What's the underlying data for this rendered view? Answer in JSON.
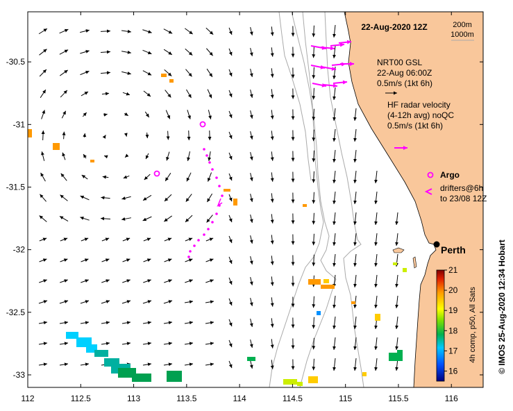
{
  "map": {
    "title": "22-Aug-2020 12Z",
    "lon_range": [
      112,
      116.3
    ],
    "lat_range": [
      -33.1,
      -30.1
    ],
    "x_ticks": [
      "112",
      "112.5",
      "113",
      "113.5",
      "114",
      "114.5",
      "115",
      "115.5",
      "116"
    ],
    "y_ticks": [
      "-30.5",
      "-31",
      "-31.5",
      "-32",
      "-32.5",
      "-33"
    ],
    "colors": {
      "land": "#f9c79b",
      "isobath": "#a9a9a9",
      "vector": "#000000",
      "drifter": "#ff00ff"
    }
  },
  "legend": {
    "isobath_200": "200m",
    "isobath_1000": "1000m",
    "nrt_line1": "NRT00 GSL",
    "nrt_line2": "22-Aug 06:00Z",
    "nrt_line3": "0.5m/s (1kt 6h)",
    "hf_line1": "HF radar velocity",
    "hf_line2": "(4-12h avg) noQC",
    "hf_line3": "0.5m/s (1kt 6h)",
    "argo_label": "Argo",
    "drifter_line1": "drifters@6h",
    "drifter_line2": "to 23/08 12Z"
  },
  "city": {
    "name": "Perth",
    "lon": 115.86,
    "lat": -31.95
  },
  "colorbar": {
    "ticks": [
      "21",
      "20",
      "19",
      "18",
      "17",
      "16"
    ],
    "label": "4h comp, p50, All Sats",
    "min": 15.5,
    "max": 21
  },
  "credit": "© IMOS 25-Aug-2020 12:34 Hobart"
}
